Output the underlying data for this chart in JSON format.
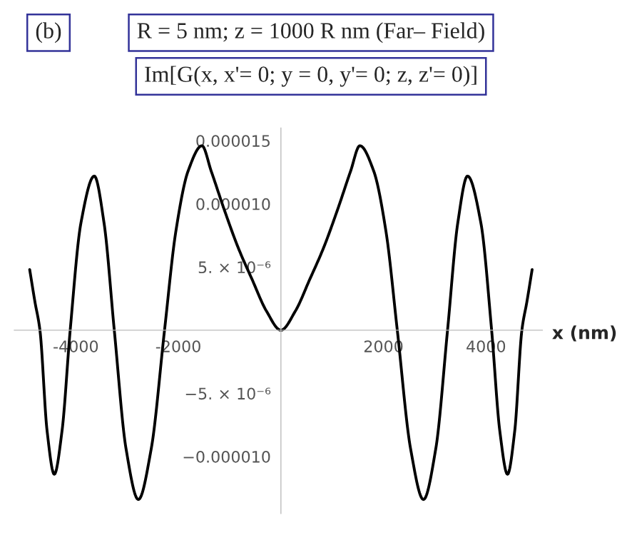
{
  "chart_data": {
    "type": "line",
    "title": "R = 5 nm; z = 1000 R nm (Far– Field)",
    "subtitle": "Im[G(x, x'= 0; y = 0, y'= 0; z, z'= 0)]",
    "xlabel": "x (nm)",
    "annotations": [
      "(b)"
    ],
    "x": [
      -4900,
      -4800,
      -4700,
      -4560,
      -4420,
      -4270,
      -4110,
      -3900,
      -3640,
      -3450,
      -3250,
      -3020,
      -2780,
      -2530,
      -2270,
      -2050,
      -1810,
      -1540,
      -1360,
      -1110,
      -830,
      -560,
      -280,
      0,
      280,
      560,
      830,
      1110,
      1360,
      1540,
      1810,
      2050,
      2270,
      2530,
      2780,
      3020,
      3250,
      3450,
      3640,
      3900,
      4110,
      4270,
      4420,
      4560,
      4700,
      4800,
      4900
    ],
    "series": [
      {
        "color": "#000000",
        "values": [
          4.8e-06,
          2.3e-06,
          0.0,
          -8e-06,
          -1.14e-05,
          -8e-06,
          0.0,
          8.5e-06,
          1.22e-05,
          8.5e-06,
          0.0,
          -9.4e-06,
          -1.34e-05,
          -9.4e-06,
          0.0,
          7.8e-06,
          1.26e-05,
          1.46e-05,
          1.26e-05,
          9.6e-06,
          6.5e-06,
          4e-06,
          1.5e-06,
          0.0,
          1.5e-06,
          4e-06,
          6.5e-06,
          9.6e-06,
          1.26e-05,
          1.46e-05,
          1.26e-05,
          7.8e-06,
          0.0,
          -9.4e-06,
          -1.34e-05,
          -9.4e-06,
          0.0,
          8.5e-06,
          1.22e-05,
          8.5e-06,
          0.0,
          -8e-06,
          -1.14e-05,
          -8e-06,
          0.0,
          2.3e-06,
          4.8e-06
        ]
      }
    ],
    "xlim": [
      -5200,
      5100
    ],
    "ylim": [
      -1.45e-05,
      1.6e-05
    ],
    "xticks": [
      -4000,
      -2000,
      2000,
      4000
    ],
    "yticks": [
      {
        "value": 1.5e-05,
        "label": "0.000015"
      },
      {
        "value": 1e-05,
        "label": "0.000010"
      },
      {
        "value": 5e-06,
        "label": "5. × 10⁻⁶"
      },
      {
        "value": -5e-06,
        "label": "−5. × 10⁻⁶"
      },
      {
        "value": -1e-05,
        "label": "−0.000010"
      }
    ],
    "grid": false,
    "marker": "none",
    "line_style": "solid"
  }
}
